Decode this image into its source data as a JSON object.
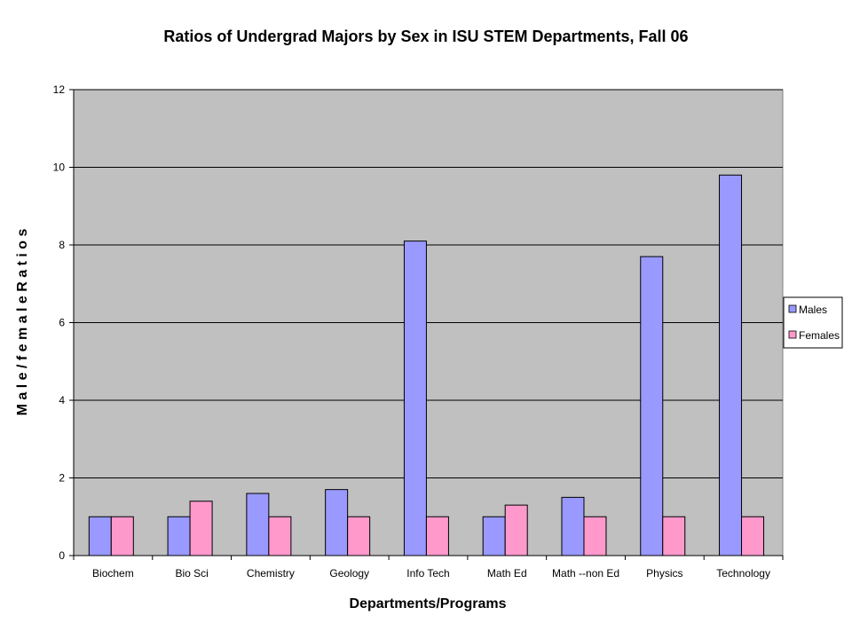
{
  "chart_data": {
    "type": "bar",
    "title": "Ratios of Undergrad Majors by Sex in ISU STEM Departments, Fall 06",
    "xlabel": "Departments/Programs",
    "ylabel": "M a l e  /  f e m a l e  R a t i o s",
    "categories": [
      "Biochem",
      "Bio Sci",
      "Chemistry",
      "Geology",
      "Info Tech",
      "Math Ed",
      "Math --non Ed",
      "Physics",
      "Technology"
    ],
    "series": [
      {
        "name": "Males",
        "color": "#9999ff",
        "values": [
          1.0,
          1.0,
          1.6,
          1.7,
          8.1,
          1.0,
          1.5,
          7.7,
          9.8
        ]
      },
      {
        "name": "Females",
        "color": "#ff99cc",
        "values": [
          1.0,
          1.4,
          1.0,
          1.0,
          1.0,
          1.3,
          1.0,
          1.0,
          1.0
        ]
      }
    ],
    "ylim": [
      0,
      12
    ],
    "yticks": [
      "0",
      "2",
      "4",
      "6",
      "8",
      "10",
      "12"
    ],
    "grid": true,
    "plot_background": "#c0c0c0",
    "legend_position": "right"
  }
}
